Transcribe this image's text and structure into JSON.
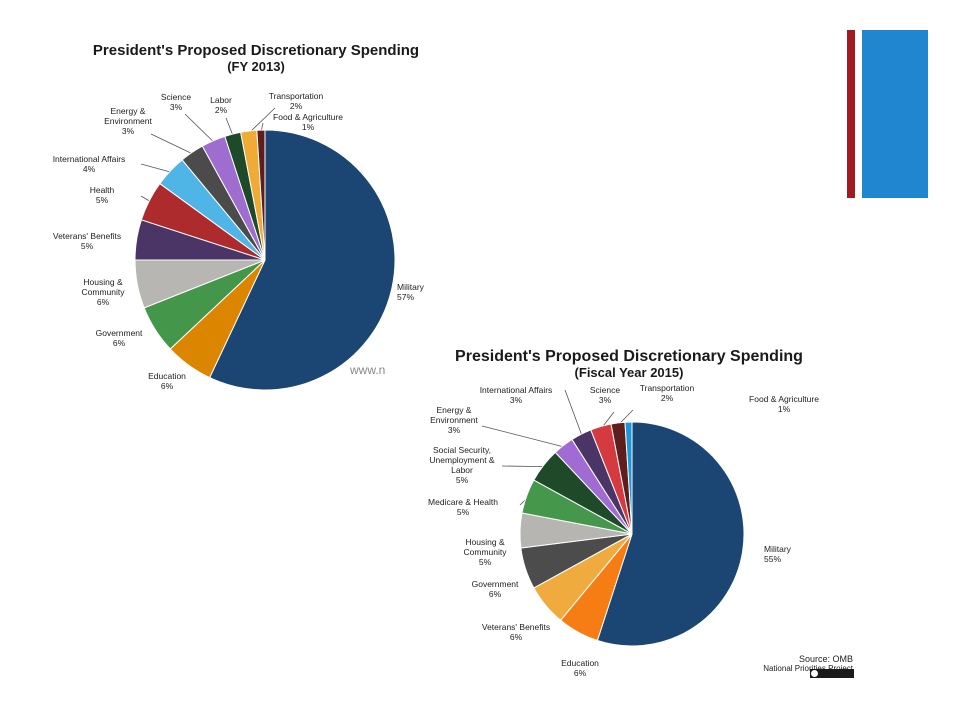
{
  "colors": {
    "accent_red": "#A01A1F",
    "accent_blue": "#1F86CF"
  },
  "chart_data": [
    {
      "type": "pie",
      "title": "President's Proposed Discretionary  Spending",
      "subtitle": "(FY 2013)",
      "watermark": "www.n",
      "slices": [
        {
          "label": "Military",
          "value": 57,
          "pct": "57%",
          "color": "#1B4572"
        },
        {
          "label": "Education",
          "value": 6,
          "pct": "6%",
          "color": "#DC8500"
        },
        {
          "label": "Government",
          "value": 6,
          "pct": "6%",
          "color": "#44974A"
        },
        {
          "label": "Housing & Community",
          "value": 6,
          "pct": "6%",
          "color": "#B7B6B2"
        },
        {
          "label": "Veterans' Benefits",
          "value": 5,
          "pct": "5%",
          "color": "#4A3566"
        },
        {
          "label": "Health",
          "value": 5,
          "pct": "5%",
          "color": "#AE2B2D"
        },
        {
          "label": "International  Affairs",
          "value": 4,
          "pct": "4%",
          "color": "#4FB5E6"
        },
        {
          "label": "Energy & Environment",
          "value": 3,
          "pct": "3%",
          "color": "#4B4B4B"
        },
        {
          "label": "Science",
          "value": 3,
          "pct": "3%",
          "color": "#9F6CCF"
        },
        {
          "label": "Labor",
          "value": 2,
          "pct": "2%",
          "color": "#1E4A2A"
        },
        {
          "label": "Transportation",
          "value": 2,
          "pct": "2%",
          "color": "#EFAB36"
        },
        {
          "label": "Food & Agriculture",
          "value": 1,
          "pct": "1%",
          "color": "#5E1E1E"
        }
      ]
    },
    {
      "type": "pie",
      "title": "President's Proposed Discretionary Spending",
      "subtitle": "(Fiscal Year 2015)",
      "source": "Source: OMB",
      "source_org": "National Priorities Project",
      "slices": [
        {
          "label": "Military",
          "value": 55,
          "pct": "55%",
          "color": "#1B4572"
        },
        {
          "label": "Education",
          "value": 6,
          "pct": "6%",
          "color": "#F67C14"
        },
        {
          "label": "Veterans'  Benefits",
          "value": 6,
          "pct": "6%",
          "color": "#EFAB3E"
        },
        {
          "label": "Government",
          "value": 6,
          "pct": "6%",
          "color": "#4C4C4C"
        },
        {
          "label": "Housing & Community",
          "value": 5,
          "pct": "5%",
          "color": "#B6B5B1"
        },
        {
          "label": "Medicare  & Health",
          "value": 5,
          "pct": "5%",
          "color": "#45984B"
        },
        {
          "label": "Social Security, Unemployment  & Labor",
          "value": 5,
          "pct": "5%",
          "color": "#1E4A2A"
        },
        {
          "label": "Energy & Environment",
          "value": 3,
          "pct": "3%",
          "color": "#A06BD2"
        },
        {
          "label": "International  Affairs",
          "value": 3,
          "pct": "3%",
          "color": "#4A3566"
        },
        {
          "label": "Science",
          "value": 3,
          "pct": "3%",
          "color": "#D43A3F"
        },
        {
          "label": "Transportation",
          "value": 2,
          "pct": "2%",
          "color": "#5E1E1E"
        },
        {
          "label": "Food & Agriculture",
          "value": 1,
          "pct": "1%",
          "color": "#1E96DA"
        }
      ]
    }
  ]
}
